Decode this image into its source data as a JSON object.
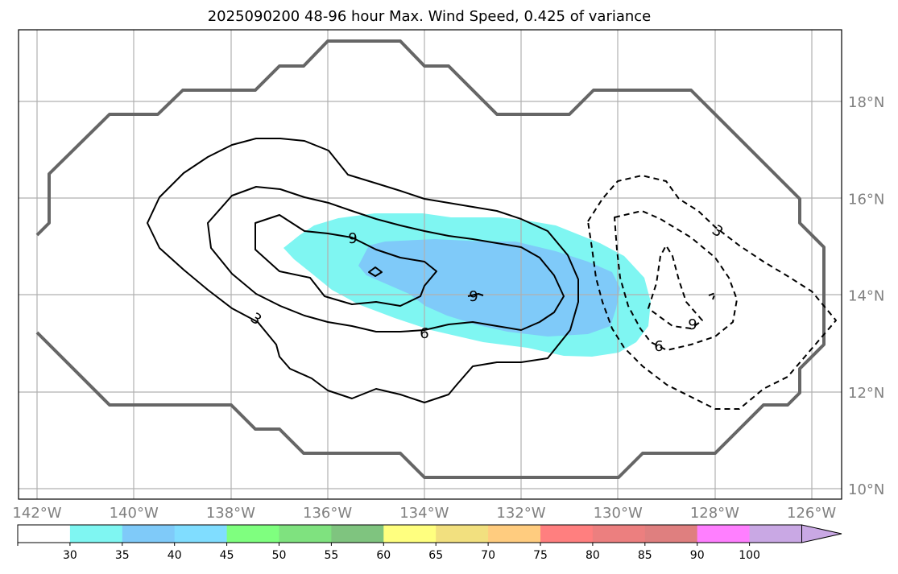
{
  "chart_data": {
    "type": "contour_map",
    "title": "2025090200 48-96 hour Max. Wind Speed, 0.425 of variance",
    "x_ticks": [
      "142°W",
      "140°W",
      "138°W",
      "136°W",
      "134°W",
      "132°W",
      "130°W",
      "128°W",
      "126°W"
    ],
    "y_ticks": [
      "10°N",
      "12°N",
      "14°N",
      "16°N",
      "18°N"
    ],
    "lon_range": [
      -142.4,
      -125.4
    ],
    "lat_range": [
      9.8,
      19.5
    ],
    "grid": true,
    "colorbar": {
      "levels": [
        30,
        35,
        40,
        45,
        50,
        55,
        60,
        65,
        70,
        75,
        80,
        85,
        90,
        100
      ],
      "colors": [
        "#ffffff",
        "#7ff6f2",
        "#7fcaf9",
        "#80ddff",
        "#7fff7f",
        "#7fe27f",
        "#7fc47f",
        "#ffff7f",
        "#f2e07f",
        "#ffcc7f",
        "#ff7f7f",
        "#ec7f7f",
        "#df7f7f",
        "#ff7fff",
        "#c9a8e4"
      ],
      "extend": "max"
    },
    "filled_regions": [
      {
        "level": "30-35",
        "color": "#7ff6f2"
      },
      {
        "level": "35-40",
        "color": "#7fcaf9"
      }
    ],
    "contour_labels": {
      "solid": [
        "3",
        "6",
        "9",
        "9"
      ],
      "dashed": [
        "3",
        "6",
        "9"
      ]
    },
    "boundary": "outer region outline (grey)"
  }
}
